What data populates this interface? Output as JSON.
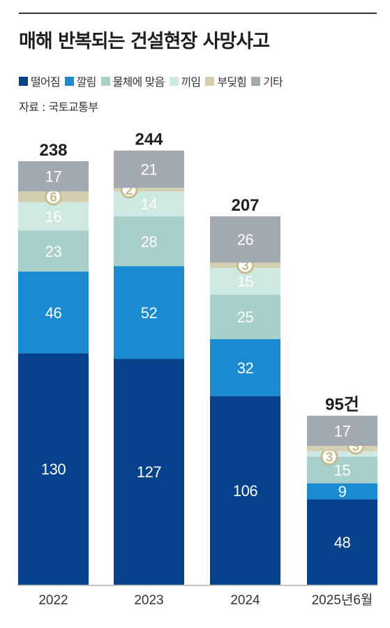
{
  "header": {
    "title": "매해 반복되는 건설현장 사망사고",
    "source": "자료 : 국토교통부"
  },
  "colors": {
    "falling": "#06428c",
    "caught": "#1a8bd0",
    "struck": "#a9cfcb",
    "pinched": "#cde9e1",
    "collision": "#d5ceb0",
    "other": "#a2a9b1",
    "badge": "#c7bb8e"
  },
  "chart_data": {
    "type": "bar",
    "stacked": true,
    "categories": [
      "2022",
      "2023",
      "2024",
      "2025년6월"
    ],
    "totals": [
      238,
      244,
      207,
      95
    ],
    "total_labels": [
      "238",
      "244",
      "207",
      "95건"
    ],
    "unit": "건",
    "series": [
      {
        "name": "떨어짐",
        "color": "#06428c",
        "values": [
          130,
          127,
          106,
          48
        ]
      },
      {
        "name": "깔림",
        "color": "#1a8bd0",
        "values": [
          46,
          52,
          32,
          9
        ]
      },
      {
        "name": "물체에 맞음",
        "color": "#a9cfcb",
        "values": [
          23,
          28,
          25,
          15
        ]
      },
      {
        "name": "끼임",
        "color": "#cde9e1",
        "values": [
          16,
          14,
          15,
          3
        ]
      },
      {
        "name": "부딪힘",
        "color": "#d5ceb0",
        "values": [
          6,
          2,
          3,
          3
        ]
      },
      {
        "name": "기타",
        "color": "#a2a9b1",
        "values": [
          17,
          21,
          26,
          17
        ]
      }
    ],
    "ylim": [
      0,
      260
    ],
    "grid": false,
    "legend_position": "top-left"
  }
}
